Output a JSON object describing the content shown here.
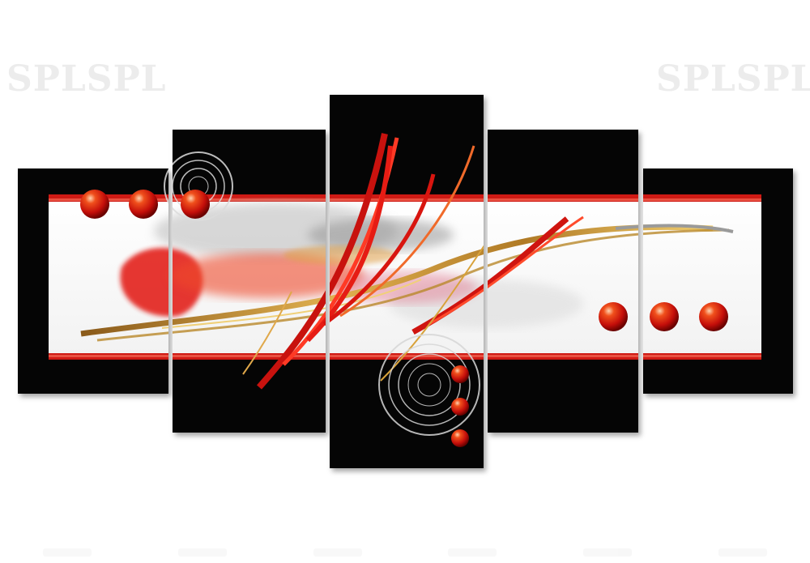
{
  "watermark": {
    "left_text": "SPLSPL",
    "right_text": "SPLSPL",
    "color": "#ececec"
  },
  "artwork": {
    "panel_count": 5,
    "colors": {
      "background": "#050505",
      "band": "#ffffff",
      "accent_red": "#d91a12",
      "accent_gold": "#d8a23a",
      "gray": "#c8c8c8"
    }
  }
}
